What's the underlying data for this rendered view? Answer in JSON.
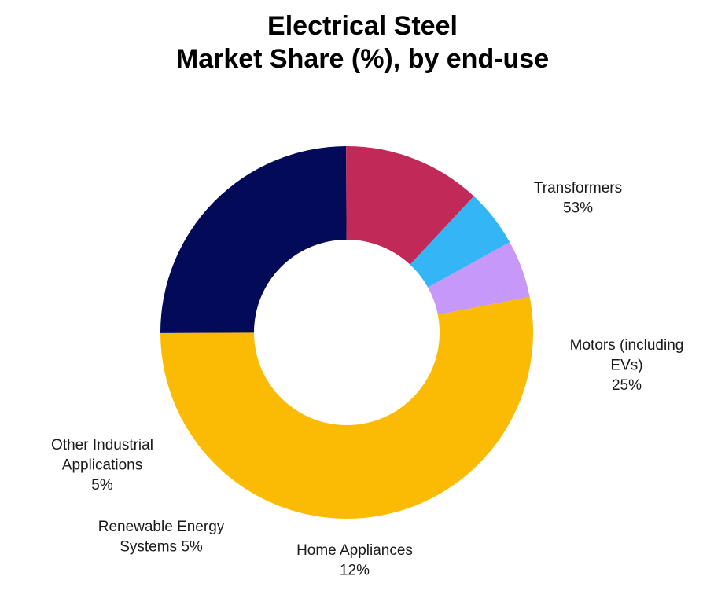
{
  "chart_data": {
    "type": "pie",
    "variant": "donut",
    "title_lines": [
      "Electrical Steel",
      "Market Share (%), by end-use"
    ],
    "series": [
      {
        "values": [
          {
            "name": "Transformers",
            "value": 53,
            "color": "#fbbb04",
            "label_lines": [
              "Transformers",
              "53%"
            ]
          },
          {
            "name": "Motors (including EVs)",
            "value": 25,
            "color": "#030a57",
            "label_lines": [
              "Motors (including",
              "EVs)",
              "25%"
            ]
          },
          {
            "name": "Home Appliances",
            "value": 12,
            "color": "#c12a58",
            "label_lines": [
              "Home Appliances",
              "12%"
            ]
          },
          {
            "name": "Renewable Energy Systems",
            "value": 5,
            "color": "#34b6f6",
            "label_lines": [
              "Renewable Energy",
              "Systems 5%"
            ]
          },
          {
            "name": "Other Industrial Applications",
            "value": 5,
            "color": "#c698f8",
            "label_lines": [
              "Other Industrial",
              "Applications",
              "5%"
            ]
          }
        ]
      }
    ],
    "legend": "none",
    "grid": false
  }
}
